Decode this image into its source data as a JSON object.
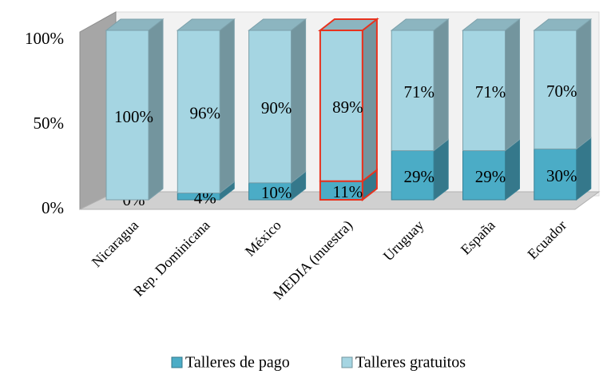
{
  "chart_data": {
    "type": "stacked_bar_3d",
    "categories": [
      "Nicaragua",
      "Rep. Dominicana",
      "México",
      "MEDIA (muestra)",
      "Uruguay",
      "España",
      "Ecuador"
    ],
    "series": [
      {
        "name": "Talleres de pago",
        "color": "#4bacc6",
        "values": [
          0,
          4,
          10,
          11,
          29,
          29,
          30
        ],
        "value_labels": [
          "0%",
          "4%",
          "10%",
          "11%",
          "29%",
          "29%",
          "30%"
        ]
      },
      {
        "name": "Talleres gratuitos",
        "color": "#a5d5e2",
        "values": [
          100,
          96,
          90,
          89,
          71,
          71,
          70
        ],
        "value_labels": [
          "100%",
          "96%",
          "90%",
          "89%",
          "71%",
          "71%",
          "70%"
        ]
      }
    ],
    "ylim": [
      0,
      100
    ],
    "yticks": [
      {
        "value": 0,
        "label": "0%"
      },
      {
        "value": 50,
        "label": "50%"
      },
      {
        "value": 100,
        "label": "100%"
      }
    ],
    "highlight": 3,
    "highlight_color": "#e8321e",
    "legend": "bottom"
  }
}
